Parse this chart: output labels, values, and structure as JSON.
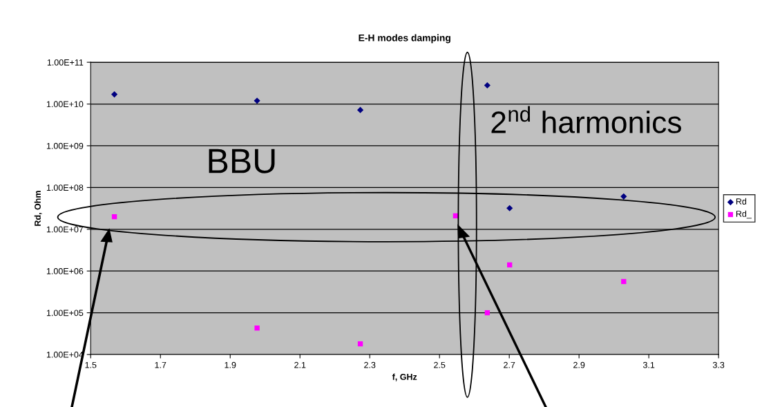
{
  "chart_data": {
    "type": "scatter",
    "title": "E-H modes damping",
    "xlabel": "f, GHz",
    "ylabel": "Rd, Ohm",
    "x": [
      1.568,
      1.977,
      2.273,
      2.546,
      2.637,
      2.701,
      3.028
    ],
    "series": [
      {
        "name": "Rd",
        "color": "#000080",
        "marker": "diamond",
        "values": [
          17000000000.0,
          12000000000.0,
          7200000000.0,
          null,
          28000000000.0,
          32000000.0,
          61000000.0
        ]
      },
      {
        "name": "Rd_",
        "color": "#ff00ff",
        "marker": "square",
        "values": [
          20000000.0,
          43000.0,
          18000.0,
          21000000.0,
          100000.0,
          1400000.0,
          560000.0
        ]
      }
    ],
    "log": "y",
    "xlim": [
      1.5,
      3.3
    ],
    "xticks": [
      1.5,
      1.7,
      1.9,
      2.1,
      2.3,
      2.5,
      2.7,
      2.9,
      3.1,
      3.3
    ],
    "ylim": [
      10000.0,
      100000000000.0
    ],
    "yticks": [
      {
        "value": 10000.0,
        "label": "1.00E+04"
      },
      {
        "value": 100000.0,
        "label": "1.00E+05"
      },
      {
        "value": 1000000.0,
        "label": "1.00E+06"
      },
      {
        "value": 10000000.0,
        "label": "1.00E+07"
      },
      {
        "value": 100000000.0,
        "label": "1.00E+08"
      },
      {
        "value": 1000000000.0,
        "label": "1.00E+09"
      },
      {
        "value": 10000000000.0,
        "label": "1.00E+10"
      },
      {
        "value": 100000000000.0,
        "label": "1.00E+11"
      }
    ],
    "grid": "y",
    "legend": "right",
    "annotations": [
      "BBU",
      "2$^{nd}$ harmonics"
    ]
  }
}
